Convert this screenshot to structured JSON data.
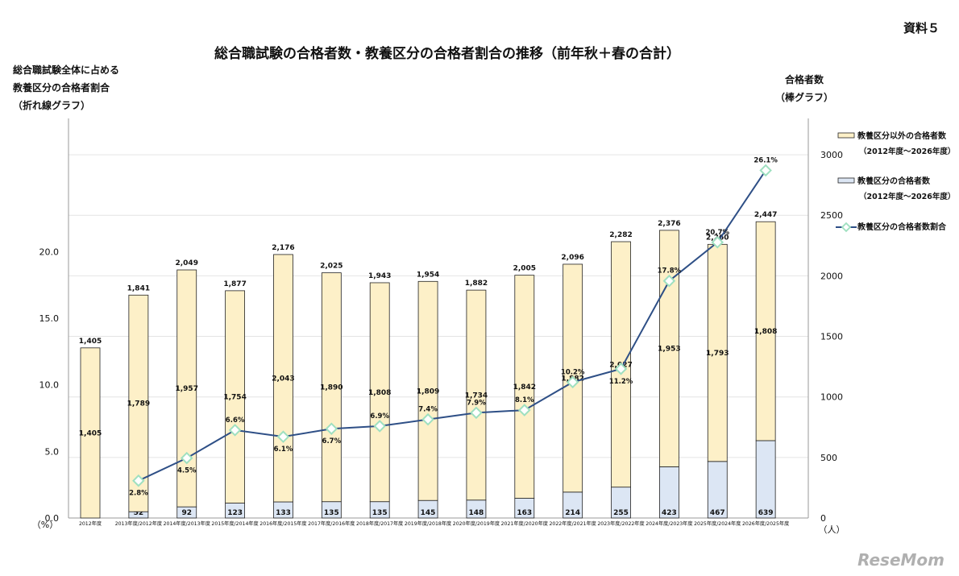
{
  "doc_label": "資料５",
  "title": "総合職試験の合格者数・教養区分の合格者割合の推移（前年秋＋春の合計）",
  "left_axis_title": [
    "総合職試験全体に占める",
    "教養区分の合格者割合",
    "（折れ線グラフ）"
  ],
  "right_axis_title": [
    "合格者数",
    "（棒グラフ）"
  ],
  "watermark": "ReseMom",
  "colors": {
    "other_bar": "#fdf0c8",
    "kyoyo_bar": "#dce6f4",
    "line": "#2e4f86",
    "marker": "#9fe0c0"
  },
  "chart_data": {
    "type": "bar",
    "categories": [
      "2012年度",
      "2013年度/2012年度",
      "2014年度/2013年度",
      "2015年度/2014年度",
      "2016年度/2015年度",
      "2017年度/2016年度",
      "2018年度/2017年度",
      "2019年度/2018年度",
      "2020年度/2019年度",
      "2021年度/2020年度",
      "2022年度/2021年度",
      "2023年度/2022年度",
      "2024年度/2023年度",
      "2025年度/2024年度",
      "2026年度/2025年度"
    ],
    "series": [
      {
        "name": "教養区分以外の合格者数",
        "name_sub": "（2012年度～2026年度）",
        "kind": "bar",
        "axis": "right",
        "values": [
          1405,
          1789,
          1957,
          1754,
          2043,
          1890,
          1808,
          1809,
          1734,
          1842,
          1882,
          2027,
          1953,
          1793,
          1808
        ]
      },
      {
        "name": "教養区分の合格者数",
        "name_sub": "（2012年度～2026年度）",
        "kind": "bar",
        "axis": "right",
        "values": [
          null,
          52,
          92,
          123,
          133,
          135,
          135,
          145,
          148,
          163,
          214,
          255,
          423,
          467,
          639
        ]
      },
      {
        "name": "教養区分の合格者数割合",
        "kind": "line",
        "axis": "left",
        "values": [
          null,
          2.8,
          4.5,
          6.6,
          6.1,
          6.7,
          6.9,
          7.4,
          7.9,
          8.1,
          10.2,
          11.2,
          17.8,
          20.7,
          26.1
        ],
        "labels": [
          "",
          "2.8%",
          "4.5%",
          "6.6%",
          "6.1%",
          "6.7%",
          "6.9%",
          "7.4%",
          "7.9%",
          "8.1%",
          "10.2%",
          "11.2%",
          "17.8%",
          "20.7%",
          "26.1%"
        ]
      }
    ],
    "totals": [
      1405,
      1841,
      2049,
      1877,
      2176,
      2025,
      1943,
      1954,
      1882,
      2005,
      2096,
      2282,
      2376,
      2260,
      2447
    ],
    "left_axis": {
      "ticks": [
        0,
        5,
        10,
        15,
        20
      ],
      "tick_labels": [
        "0.0",
        "5.0",
        "10.0",
        "15.0",
        "20.0"
      ],
      "unit": "（%）",
      "ylim": [
        0,
        30
      ]
    },
    "right_axis": {
      "ticks": [
        0,
        500,
        1000,
        1500,
        2000,
        2500,
        3000
      ],
      "tick_labels": [
        "0",
        "500",
        "1000",
        "1500",
        "2000",
        "2500",
        "3000"
      ],
      "unit": "（人）",
      "ylim": [
        0,
        3300
      ]
    },
    "legend_position": "right"
  }
}
